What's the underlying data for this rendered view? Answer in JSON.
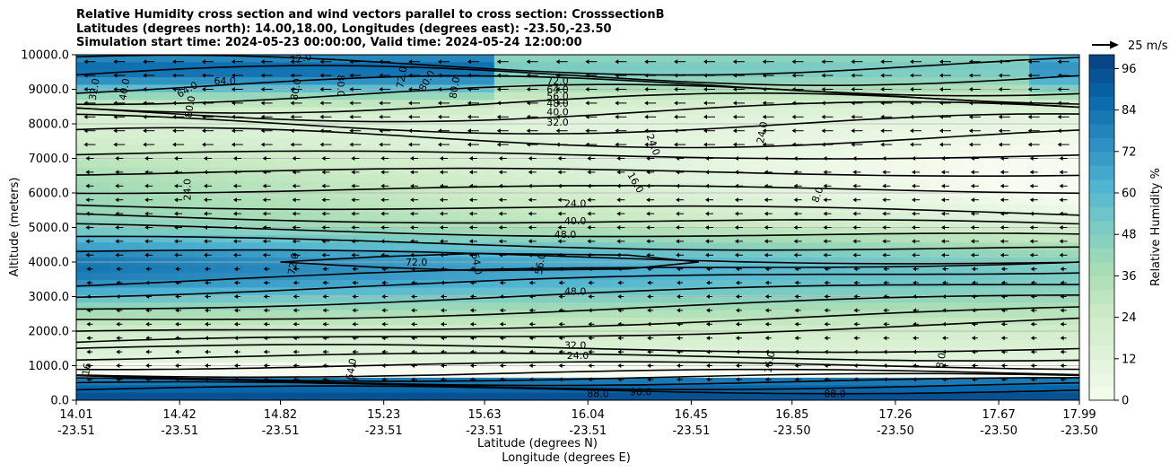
{
  "title": {
    "line1": "Relative Humidity cross section and wind vectors parallel to cross section: CrosssectionB",
    "line2": "Latitudes (degrees north): 14.00,18.00, Longitudes (degrees east): -23.50,-23.50",
    "line3": "Simulation start time: 2024-05-23 00:00:00, Valid time: 2024-05-24 12:00:00"
  },
  "chart_data": {
    "type": "heatmap",
    "subtype": "filled contour cross-section with contour lines and wind quivers",
    "variable": "Relative Humidity %",
    "ylabel": "Altitude (meters)",
    "xlabel_lat": "Latitude (degrees N)",
    "xlabel_lon": "Longitude (degrees E)",
    "ylim": [
      0,
      10000
    ],
    "yticks": [
      "0.0",
      "1000.0",
      "2000.0",
      "3000.0",
      "4000.0",
      "5000.0",
      "6000.0",
      "7000.0",
      "8000.0",
      "9000.0",
      "10000.0"
    ],
    "xticks": [
      {
        "lat": "14.01",
        "lon": "-23.51"
      },
      {
        "lat": "14.42",
        "lon": "-23.51"
      },
      {
        "lat": "14.82",
        "lon": "-23.51"
      },
      {
        "lat": "15.23",
        "lon": "-23.51"
      },
      {
        "lat": "15.63",
        "lon": "-23.51"
      },
      {
        "lat": "16.04",
        "lon": "-23.51"
      },
      {
        "lat": "16.45",
        "lon": "-23.51"
      },
      {
        "lat": "16.85",
        "lon": "-23.50"
      },
      {
        "lat": "17.26",
        "lon": "-23.50"
      },
      {
        "lat": "17.67",
        "lon": "-23.50"
      },
      {
        "lat": "17.99",
        "lon": "-23.50"
      }
    ],
    "colorbar": {
      "label": "Relative Humidity %",
      "range": [
        0,
        100
      ],
      "ticks": [
        "0",
        "12",
        "24",
        "36",
        "48",
        "60",
        "72",
        "84",
        "96"
      ],
      "colors": [
        "#f7fcf0",
        "#e0f3db",
        "#ccebc5",
        "#a8ddb5",
        "#7bccc4",
        "#4eb3d3",
        "#2b8cbe",
        "#0868ac",
        "#084081"
      ]
    },
    "quiver_key": "25 m/s",
    "grid": "horizontal",
    "contour_labels": [
      {
        "text": "72.0",
        "x": 14.9,
        "y": 9900,
        "rot": -10
      },
      {
        "text": "72.0",
        "x": 15.3,
        "y": 9350,
        "rot": -80
      },
      {
        "text": "64.0",
        "x": 14.6,
        "y": 9250,
        "rot": 0
      },
      {
        "text": "64.0",
        "x": 14.45,
        "y": 9000,
        "rot": -30
      },
      {
        "text": "40.0",
        "x": 14.2,
        "y": 9000,
        "rot": -80
      },
      {
        "text": "32.0",
        "x": 14.08,
        "y": 9000,
        "rot": -80
      },
      {
        "text": "80.0",
        "x": 14.46,
        "y": 8500,
        "rot": -80
      },
      {
        "text": "80.0",
        "x": 14.88,
        "y": 9000,
        "rot": -80
      },
      {
        "text": "80.0",
        "x": 15.06,
        "y": 9100,
        "rot": 90
      },
      {
        "text": "80.0",
        "x": 15.4,
        "y": 9250,
        "rot": -60
      },
      {
        "text": "80.0",
        "x": 15.51,
        "y": 9050,
        "rot": -80
      },
      {
        "text": "72.0",
        "x": 15.92,
        "y": 9250,
        "rot": 0
      },
      {
        "text": "64.0",
        "x": 15.92,
        "y": 9000,
        "rot": 0
      },
      {
        "text": "56.0",
        "x": 15.92,
        "y": 8800,
        "rot": 0
      },
      {
        "text": "48.0",
        "x": 15.92,
        "y": 8600,
        "rot": 0
      },
      {
        "text": "40.0",
        "x": 15.92,
        "y": 8350,
        "rot": 0
      },
      {
        "text": "32.0",
        "x": 15.92,
        "y": 8050,
        "rot": 0
      },
      {
        "text": "24.0",
        "x": 16.3,
        "y": 7400,
        "rot": 70
      },
      {
        "text": "24.0",
        "x": 16.73,
        "y": 7750,
        "rot": -80
      },
      {
        "text": "16.0",
        "x": 16.23,
        "y": 6300,
        "rot": 60
      },
      {
        "text": "8.0",
        "x": 16.95,
        "y": 5950,
        "rot": -70
      },
      {
        "text": "24.0",
        "x": 14.45,
        "y": 6100,
        "rot": -90
      },
      {
        "text": "24.0",
        "x": 15.99,
        "y": 5700,
        "rot": 0
      },
      {
        "text": "40.0",
        "x": 15.99,
        "y": 5200,
        "rot": 0
      },
      {
        "text": "48.0",
        "x": 15.95,
        "y": 4800,
        "rot": 0
      },
      {
        "text": "72.0",
        "x": 14.87,
        "y": 3950,
        "rot": -80
      },
      {
        "text": "72.0",
        "x": 15.36,
        "y": 4000,
        "rot": 0
      },
      {
        "text": "64.0",
        "x": 15.6,
        "y": 3950,
        "rot": 80
      },
      {
        "text": "56.0",
        "x": 15.85,
        "y": 3950,
        "rot": -80
      },
      {
        "text": "48.0",
        "x": 15.99,
        "y": 3150,
        "rot": 0
      },
      {
        "text": "32.0",
        "x": 15.99,
        "y": 1600,
        "rot": 0
      },
      {
        "text": "24.0",
        "x": 16.0,
        "y": 1300,
        "rot": 0
      },
      {
        "text": "16.0",
        "x": 16.76,
        "y": 1100,
        "rot": -80
      },
      {
        "text": "8.0",
        "x": 17.44,
        "y": 1150,
        "rot": -80
      },
      {
        "text": "16",
        "x": 14.05,
        "y": 900,
        "rot": -80
      },
      {
        "text": "64.0",
        "x": 15.1,
        "y": 900,
        "rot": -80
      },
      {
        "text": "96.0",
        "x": 16.25,
        "y": 250,
        "rot": 0
      },
      {
        "text": "88.0",
        "x": 16.08,
        "y": 200,
        "rot": 0
      },
      {
        "text": "88.0",
        "x": 17.02,
        "y": 200,
        "rot": 0
      }
    ]
  }
}
